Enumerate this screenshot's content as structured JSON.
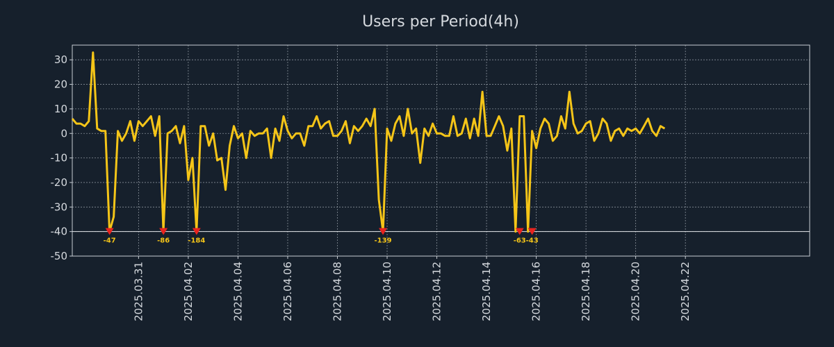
{
  "chart_data": {
    "type": "line",
    "title": "Users per Period(4h)",
    "xlabel": "",
    "ylabel": "",
    "ylim": [
      -50,
      36
    ],
    "grid": true,
    "yticks": [
      30,
      20,
      10,
      0,
      -10,
      -20,
      -30,
      -40,
      -50
    ],
    "xlim": [
      0,
      178
    ],
    "xticks": [
      {
        "label": "2025.03.31",
        "pos": 16
      },
      {
        "label": "2025.04.02",
        "pos": 28
      },
      {
        "label": "2025.04.04",
        "pos": 40
      },
      {
        "label": "2025.04.06",
        "pos": 52
      },
      {
        "label": "2025.04.08",
        "pos": 64
      },
      {
        "label": "2025.04.10",
        "pos": 76
      },
      {
        "label": "2025.04.12",
        "pos": 88
      },
      {
        "label": "2025.04.14",
        "pos": 100
      },
      {
        "label": "2025.04.16",
        "pos": 112
      },
      {
        "label": "2025.04.18",
        "pos": 124
      },
      {
        "label": "2025.04.20",
        "pos": 136
      },
      {
        "label": "2025.04.22",
        "pos": 148
      }
    ],
    "clip_value": -40,
    "series": [
      {
        "name": "Users",
        "color": "#f5c518",
        "values": [
          6,
          4,
          4,
          3,
          5,
          33,
          2,
          1,
          1,
          -40,
          -34,
          1,
          -3,
          0,
          5,
          -3,
          5,
          3,
          5,
          7,
          -1,
          7,
          -40,
          0,
          1,
          3,
          -4,
          3,
          -19,
          -10,
          -40,
          3,
          3,
          -5,
          0,
          -11,
          -10,
          -23,
          -5,
          3,
          -2,
          0,
          -10,
          1,
          -1,
          0,
          0,
          2,
          -10,
          2,
          -3,
          7,
          1,
          -2,
          0,
          0,
          -5,
          3,
          3,
          7,
          2,
          4,
          5,
          -1,
          -1,
          1,
          5,
          -4,
          3,
          1,
          3,
          6,
          3,
          10,
          -27,
          -40,
          2,
          -3,
          4,
          7,
          -1,
          10,
          0,
          2,
          -12,
          2,
          -1,
          4,
          0,
          0,
          -1,
          -1,
          7,
          -1,
          0,
          6,
          -2,
          6,
          -1,
          17,
          -1,
          -1,
          3,
          7,
          3,
          -7,
          2,
          -40,
          7,
          7,
          -40,
          1,
          -6,
          2,
          6,
          4,
          -3,
          -1,
          7,
          2,
          17,
          4,
          0,
          1,
          4,
          5,
          -3,
          0,
          6,
          4,
          -3,
          1,
          2,
          -1,
          2,
          1,
          2,
          0,
          3,
          6,
          1,
          -1,
          3,
          2
        ]
      }
    ],
    "annotations": [
      {
        "index": 9,
        "label": "-47"
      },
      {
        "index": 22,
        "label": "-86"
      },
      {
        "index": 30,
        "label": "-184"
      },
      {
        "index": 75,
        "label": "-139"
      },
      {
        "index": 108,
        "label": "-63"
      },
      {
        "index": 111,
        "label": "-43"
      }
    ],
    "marker_color": "#e8231e"
  }
}
